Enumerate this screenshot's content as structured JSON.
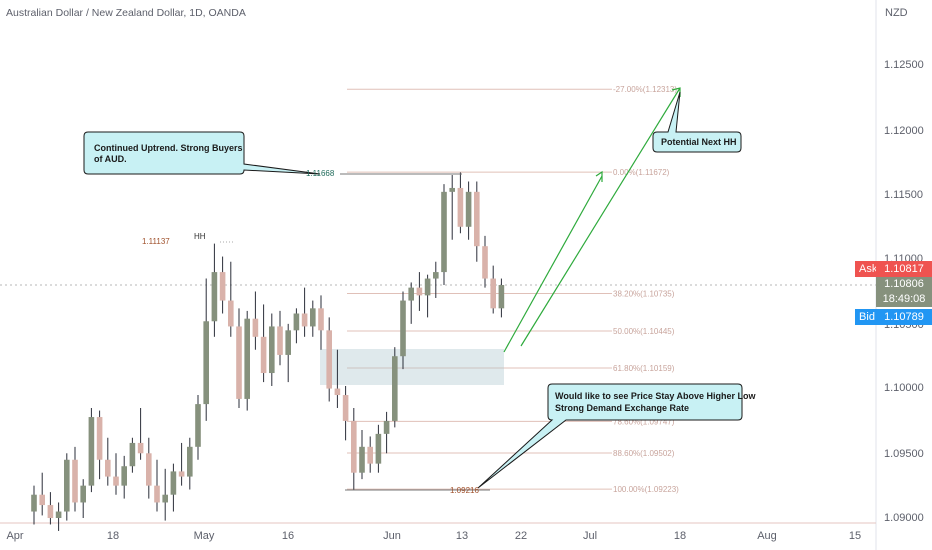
{
  "header": {
    "symbol_title": "Australian Dollar / New Zealand Dollar, 1D, OANDA"
  },
  "price_axis": {
    "currency": "NZD",
    "ticks": [
      "1.12500",
      "1.12000",
      "1.11500",
      "1.11000",
      "1.10500",
      "1.10000",
      "1.09500",
      "1.09000"
    ],
    "ask_label": "Ask",
    "ask_value": "1.10817",
    "current_value": "1.10806",
    "countdown": "18:49:08",
    "bid_label": "Bid",
    "bid_value": "1.10789"
  },
  "time_axis": {
    "ticks": [
      "Apr",
      "18",
      "May",
      "16",
      "Jun",
      "13",
      "22",
      "Jul",
      "18",
      "Aug",
      "15"
    ]
  },
  "colors": {
    "up_candle": "#86917d",
    "down_candle": "#d9b2aa",
    "annotation": "#2eaa3c",
    "callout_fill": "#c8f1f4",
    "ask": "#ef5350",
    "bid": "#2196f3",
    "zone": "#b0c8d0"
  },
  "annotations": {
    "callout_top": "Continued Uptrend. Strong Buyers of AUD.",
    "callout_hh": "Potential Next HH",
    "callout_bottom_1": "Would like to see Price Stay Above Higher Low",
    "callout_bottom_2": "Strong Demand Exchange Rate",
    "hh_label": "HH",
    "level_111137": "1.11137",
    "level_111668": "1.11668",
    "level_109216": "1.09216"
  },
  "fib_levels": [
    {
      "label": "-27.00%(1.12313)",
      "price": 1.12313
    },
    {
      "label": "0.00%(1.11672)",
      "price": 1.11672
    },
    {
      "label": "38.20%(1.10735)",
      "price": 1.10735
    },
    {
      "label": "50.00%(1.10445)",
      "price": 1.10445
    },
    {
      "label": "61.80%(1.10159)",
      "price": 1.10159
    },
    {
      "label": "78.60%(1.09747)",
      "price": 1.09747
    },
    {
      "label": "88.60%(1.09502)",
      "price": 1.09502
    },
    {
      "label": "100.00%(1.09223)",
      "price": 1.09223
    }
  ],
  "chart_data": {
    "type": "candlestick",
    "title": "Australian Dollar / New Zealand Dollar, 1D, OANDA",
    "ylim": [
      1.09,
      1.128
    ],
    "candles": [
      {
        "o": 1.0905,
        "h": 1.0925,
        "l": 1.0895,
        "c": 1.0918
      },
      {
        "o": 1.0918,
        "h": 1.0935,
        "l": 1.0902,
        "c": 1.091
      },
      {
        "o": 1.091,
        "h": 1.092,
        "l": 1.0895,
        "c": 1.09
      },
      {
        "o": 1.09,
        "h": 1.0912,
        "l": 1.089,
        "c": 1.0905
      },
      {
        "o": 1.0905,
        "h": 1.095,
        "l": 1.0898,
        "c": 1.0945
      },
      {
        "o": 1.0945,
        "h": 1.0955,
        "l": 1.0905,
        "c": 1.0912
      },
      {
        "o": 1.0912,
        "h": 1.093,
        "l": 1.09,
        "c": 1.0925
      },
      {
        "o": 1.0925,
        "h": 1.0985,
        "l": 1.092,
        "c": 1.0978
      },
      {
        "o": 1.0978,
        "h": 1.0983,
        "l": 1.093,
        "c": 1.0945
      },
      {
        "o": 1.0945,
        "h": 1.0962,
        "l": 1.0925,
        "c": 1.0932
      },
      {
        "o": 1.0932,
        "h": 1.095,
        "l": 1.0918,
        "c": 1.0925
      },
      {
        "o": 1.0925,
        "h": 1.0948,
        "l": 1.0915,
        "c": 1.094
      },
      {
        "o": 1.094,
        "h": 1.0962,
        "l": 1.0935,
        "c": 1.0958
      },
      {
        "o": 1.0958,
        "h": 1.0985,
        "l": 1.0945,
        "c": 1.095
      },
      {
        "o": 1.095,
        "h": 1.0962,
        "l": 1.0915,
        "c": 1.0925
      },
      {
        "o": 1.0925,
        "h": 1.0945,
        "l": 1.0905,
        "c": 1.0912
      },
      {
        "o": 1.0912,
        "h": 1.0938,
        "l": 1.0898,
        "c": 1.0918
      },
      {
        "o": 1.0918,
        "h": 1.0942,
        "l": 1.0905,
        "c": 1.0936
      },
      {
        "o": 1.0936,
        "h": 1.0958,
        "l": 1.0925,
        "c": 1.0932
      },
      {
        "o": 1.0932,
        "h": 1.0962,
        "l": 1.0922,
        "c": 1.0955
      },
      {
        "o": 1.0955,
        "h": 1.0995,
        "l": 1.0945,
        "c": 1.0988
      },
      {
        "o": 1.0988,
        "h": 1.1085,
        "l": 1.0975,
        "c": 1.1052
      },
      {
        "o": 1.1052,
        "h": 1.1112,
        "l": 1.104,
        "c": 1.109
      },
      {
        "o": 1.109,
        "h": 1.1102,
        "l": 1.1058,
        "c": 1.1068
      },
      {
        "o": 1.1068,
        "h": 1.1098,
        "l": 1.104,
        "c": 1.1048
      },
      {
        "o": 1.1048,
        "h": 1.1062,
        "l": 1.0985,
        "c": 1.0992
      },
      {
        "o": 1.0992,
        "h": 1.106,
        "l": 1.0983,
        "c": 1.1054
      },
      {
        "o": 1.1054,
        "h": 1.1075,
        "l": 1.103,
        "c": 1.104
      },
      {
        "o": 1.104,
        "h": 1.1065,
        "l": 1.1005,
        "c": 1.1012
      },
      {
        "o": 1.1012,
        "h": 1.1058,
        "l": 1.1002,
        "c": 1.1048
      },
      {
        "o": 1.1048,
        "h": 1.106,
        "l": 1.1018,
        "c": 1.1026
      },
      {
        "o": 1.1026,
        "h": 1.105,
        "l": 1.1005,
        "c": 1.1045
      },
      {
        "o": 1.1045,
        "h": 1.1062,
        "l": 1.1035,
        "c": 1.1058
      },
      {
        "o": 1.1058,
        "h": 1.1078,
        "l": 1.104,
        "c": 1.1048
      },
      {
        "o": 1.1048,
        "h": 1.1068,
        "l": 1.104,
        "c": 1.1062
      },
      {
        "o": 1.1062,
        "h": 1.1072,
        "l": 1.103,
        "c": 1.1045
      },
      {
        "o": 1.1045,
        "h": 1.1055,
        "l": 1.099,
        "c": 1.1
      },
      {
        "o": 1.1,
        "h": 1.103,
        "l": 1.0985,
        "c": 1.0995
      },
      {
        "o": 1.0995,
        "h": 1.1002,
        "l": 1.096,
        "c": 1.0975
      },
      {
        "o": 1.0975,
        "h": 1.0985,
        "l": 1.0922,
        "c": 1.0935
      },
      {
        "o": 1.0935,
        "h": 1.0968,
        "l": 1.093,
        "c": 1.0955
      },
      {
        "o": 1.0955,
        "h": 1.0963,
        "l": 1.0935,
        "c": 1.0942
      },
      {
        "o": 1.0942,
        "h": 1.0972,
        "l": 1.0935,
        "c": 1.0965
      },
      {
        "o": 1.0965,
        "h": 1.0982,
        "l": 1.095,
        "c": 1.0975
      },
      {
        "o": 1.0975,
        "h": 1.1032,
        "l": 1.097,
        "c": 1.1025
      },
      {
        "o": 1.1025,
        "h": 1.1075,
        "l": 1.1015,
        "c": 1.1068
      },
      {
        "o": 1.1068,
        "h": 1.1082,
        "l": 1.105,
        "c": 1.1078
      },
      {
        "o": 1.1078,
        "h": 1.109,
        "l": 1.106,
        "c": 1.1072
      },
      {
        "o": 1.1072,
        "h": 1.1088,
        "l": 1.1055,
        "c": 1.1085
      },
      {
        "o": 1.1085,
        "h": 1.1098,
        "l": 1.107,
        "c": 1.109
      },
      {
        "o": 1.109,
        "h": 1.1158,
        "l": 1.108,
        "c": 1.1152
      },
      {
        "o": 1.1152,
        "h": 1.1165,
        "l": 1.1115,
        "c": 1.1155
      },
      {
        "o": 1.1155,
        "h": 1.1167,
        "l": 1.112,
        "c": 1.1125
      },
      {
        "o": 1.1125,
        "h": 1.116,
        "l": 1.1115,
        "c": 1.1152
      },
      {
        "o": 1.1152,
        "h": 1.116,
        "l": 1.1098,
        "c": 1.111
      },
      {
        "o": 1.111,
        "h": 1.1118,
        "l": 1.1078,
        "c": 1.1085
      },
      {
        "o": 1.1085,
        "h": 1.1095,
        "l": 1.1058,
        "c": 1.1062
      },
      {
        "o": 1.1062,
        "h": 1.1085,
        "l": 1.1055,
        "c": 1.108
      }
    ]
  }
}
